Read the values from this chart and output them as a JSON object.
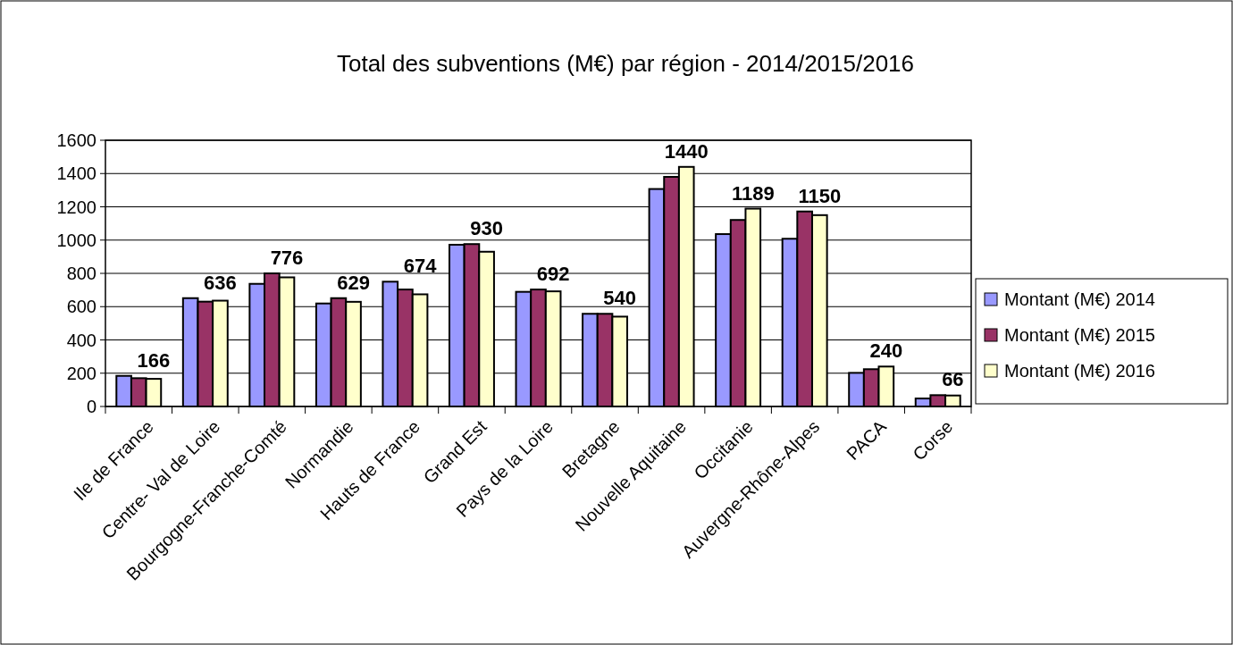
{
  "chart_data": {
    "type": "bar",
    "title": "Total des subventions (M€) par région - 2014/2015/2016",
    "categories": [
      "Ile de France",
      "Centre- Val de Loire",
      "Bourgogne-Franche-Comté",
      "Normandie",
      "Hauts de France",
      "Grand Est",
      "Pays de la Loire",
      "Bretagne",
      "Nouvelle Aquitaine",
      "Occitanie",
      "Auvergne-Rhône-Alpes",
      "PACA",
      "Corse"
    ],
    "series": [
      {
        "name": "Montant (M€) 2014",
        "color": "#9999ff",
        "values": [
          184,
          651,
          737,
          619,
          750,
          972,
          689,
          557,
          1307,
          1036,
          1008,
          202,
          48
        ]
      },
      {
        "name": "Montant (M€) 2015",
        "color": "#993366",
        "values": [
          170,
          630,
          800,
          651,
          703,
          976,
          703,
          557,
          1380,
          1121,
          1172,
          224,
          68
        ]
      },
      {
        "name": "Montant (M€) 2016",
        "color": "#ffffcc",
        "values": [
          166,
          636,
          776,
          629,
          674,
          930,
          692,
          540,
          1440,
          1189,
          1150,
          240,
          66
        ],
        "value_labels": [
          "166",
          "636",
          "776",
          "629",
          "674",
          "930",
          "692",
          "540",
          "1440",
          "1189",
          "1150",
          "240",
          "66"
        ]
      }
    ],
    "ylim": [
      0,
      1600
    ],
    "yticks": [
      0,
      200,
      400,
      600,
      800,
      1000,
      1200,
      1400,
      1600
    ],
    "grid": "y",
    "legend": "right"
  }
}
